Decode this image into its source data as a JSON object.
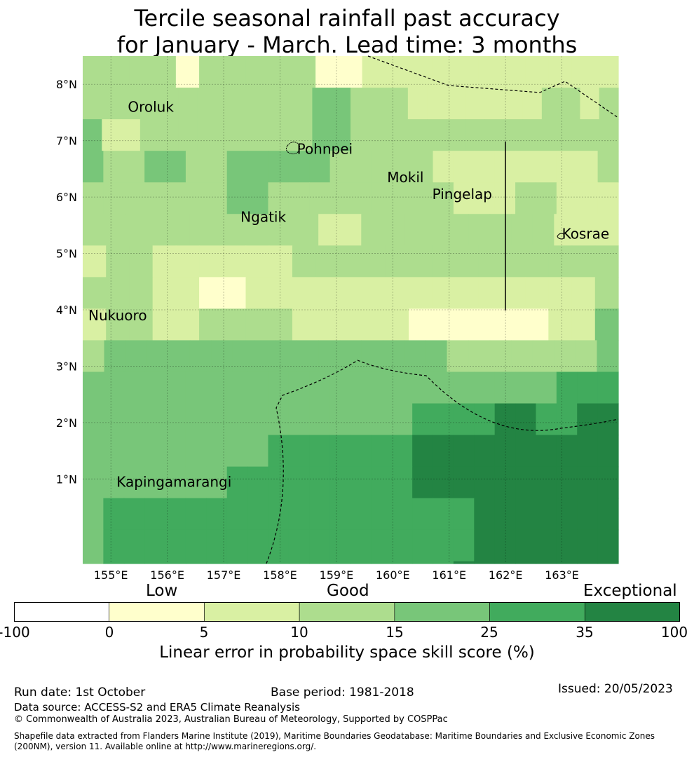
{
  "title": {
    "line1": "Tercile seasonal rainfall past accuracy",
    "line2": "for January - March. Lead time: 3 months"
  },
  "map_data": {
    "lon_range": [
      154.5,
      164.0
    ],
    "lat_range": [
      -0.5,
      8.5
    ],
    "grid_origin": [
      154.5,
      8.5
    ],
    "cell_degrees": [
      0.83,
      0.56
    ],
    "grid_levels": [
      [
        3,
        3,
        3,
        3,
        1,
        3,
        3,
        3,
        3,
        3,
        1,
        1,
        2,
        2,
        2,
        2,
        2,
        2,
        2,
        2,
        2,
        2,
        2
      ],
      [
        3,
        3,
        3,
        3,
        3,
        3,
        3,
        3,
        3,
        3,
        3,
        3,
        4,
        4,
        3,
        3,
        3,
        2,
        2,
        2,
        2,
        2,
        2,
        2,
        3,
        3,
        2,
        3
      ],
      [
        4,
        2,
        2,
        3,
        3,
        3,
        3,
        3,
        3,
        3,
        3,
        3,
        4,
        4,
        3,
        3,
        3,
        3,
        3,
        3,
        3,
        3,
        3,
        3,
        3,
        3,
        3,
        3
      ],
      [
        4,
        3,
        3,
        4,
        4,
        3,
        3,
        4,
        4,
        4,
        4,
        4,
        3,
        3,
        3,
        3,
        3,
        2,
        2,
        2,
        2,
        2,
        2,
        2,
        2,
        3
      ],
      [
        3,
        3,
        3,
        3,
        3,
        3,
        3,
        4,
        4,
        3,
        3,
        3,
        3,
        3,
        3,
        3,
        3,
        3,
        2,
        2,
        2,
        3,
        3,
        2,
        2,
        2
      ],
      [
        3,
        3,
        3,
        3,
        3,
        3,
        3,
        3,
        3,
        3,
        3,
        2,
        2,
        3,
        3,
        3,
        3,
        3,
        3,
        3,
        3,
        3,
        2,
        2,
        2
      ],
      [
        2,
        3,
        3,
        2,
        2,
        2,
        2,
        2,
        2,
        3,
        3,
        3,
        3,
        3,
        3,
        3,
        3,
        3,
        3,
        3,
        3,
        3,
        3
      ],
      [
        3,
        3,
        3,
        2,
        2,
        1,
        1,
        2,
        2,
        2,
        2,
        2,
        2,
        2,
        2,
        2,
        2,
        2,
        2,
        2,
        2,
        2,
        3
      ],
      [
        2,
        3,
        3,
        2,
        2,
        3,
        3,
        3,
        3,
        2,
        2,
        2,
        2,
        2,
        1,
        1,
        1,
        1,
        1,
        1,
        2,
        2,
        4
      ],
      [
        3,
        4,
        4,
        4,
        4,
        4,
        4,
        4,
        4,
        4,
        4,
        4,
        4,
        4,
        4,
        4,
        4,
        3,
        3,
        3,
        3,
        3,
        3,
        3,
        4
      ],
      [
        4,
        4,
        4,
        4,
        4,
        4,
        4,
        4,
        4,
        4,
        4,
        4,
        4,
        4,
        4,
        4,
        4,
        4,
        4,
        4,
        4,
        4,
        4,
        5,
        5,
        5
      ],
      [
        4,
        4,
        4,
        4,
        4,
        4,
        4,
        4,
        4,
        4,
        4,
        4,
        4,
        4,
        4,
        4,
        5,
        5,
        5,
        5,
        6,
        6,
        5,
        5,
        6,
        6
      ],
      [
        4,
        4,
        4,
        4,
        4,
        4,
        4,
        4,
        4,
        5,
        5,
        5,
        5,
        5,
        5,
        5,
        6,
        6,
        6,
        6,
        6,
        6,
        6,
        6,
        6,
        6
      ],
      [
        4,
        4,
        4,
        4,
        4,
        4,
        4,
        5,
        5,
        5,
        5,
        5,
        5,
        5,
        5,
        5,
        6,
        6,
        6,
        6,
        6,
        6,
        6,
        6,
        6,
        6
      ],
      [
        4,
        5,
        5,
        5,
        5,
        5,
        5,
        5,
        5,
        5,
        5,
        5,
        5,
        5,
        5,
        5,
        5,
        5,
        5,
        6,
        6,
        6,
        6,
        6,
        6,
        6
      ],
      [
        4,
        5,
        5,
        5,
        5,
        5,
        5,
        5,
        5,
        5,
        5,
        5,
        5,
        5,
        5,
        5,
        5,
        5,
        5,
        6,
        6,
        6,
        6,
        6,
        6,
        6
      ],
      [
        4,
        5,
        5,
        5,
        5,
        5,
        5,
        5,
        5,
        5,
        5,
        5,
        5,
        5,
        5,
        5,
        5,
        5,
        6,
        6,
        6,
        6,
        6,
        6,
        6,
        6
      ]
    ],
    "x_ticks": [
      "155°E",
      "156°E",
      "157°E",
      "158°E",
      "159°E",
      "160°E",
      "161°E",
      "162°E",
      "163°E"
    ],
    "x_tick_values": [
      155,
      156,
      157,
      158,
      159,
      160,
      161,
      162,
      163
    ],
    "y_ticks": [
      "8°N",
      "7°N",
      "6°N",
      "5°N",
      "4°N",
      "3°N",
      "2°N",
      "1°N"
    ],
    "y_tick_values": [
      8,
      7,
      6,
      5,
      4,
      3,
      2,
      1
    ],
    "places": [
      {
        "name": "Oroluk",
        "lon": 155.3,
        "lat": 7.6
      },
      {
        "name": "Pohnpei",
        "lon": 158.3,
        "lat": 6.85
      },
      {
        "name": "Mokil",
        "lon": 159.9,
        "lat": 6.35
      },
      {
        "name": "Pingelap",
        "lon": 160.7,
        "lat": 6.05
      },
      {
        "name": "Ngatik",
        "lon": 157.3,
        "lat": 5.65
      },
      {
        "name": "Kosrae",
        "lon": 163.0,
        "lat": 5.35
      },
      {
        "name": "Nukuoro",
        "lon": 154.6,
        "lat": 3.9
      },
      {
        "name": "Kapingamarangi",
        "lon": 155.1,
        "lat": 0.95
      }
    ]
  },
  "legend": {
    "categories": [
      "Low",
      "Good",
      "Exceptional"
    ],
    "bounds": [
      "-100",
      "0",
      "5",
      "10",
      "15",
      "25",
      "35",
      "100"
    ],
    "colors": [
      "#ffffff",
      "#ffffcc",
      "#d9f0a3",
      "#addd8e",
      "#78c679",
      "#41ab5d",
      "#238443"
    ],
    "axis_title": "Linear error in probability space skill score (%)"
  },
  "footer": {
    "run_date": "Run date: 1st October",
    "base_period": "Base period: 1981-2018",
    "issued": "Issued: 20/05/2023",
    "data_source": "Data source: ACCESS-S2 and ERA5 Climate Reanalysis",
    "copyright": "© Commonwealth of Australia 2023, Australian Bureau of Meteorology, Supported by COSPPac",
    "shapefile": "Shapefile data extracted from Flanders Marine Institute (2019), Maritime Boundaries Geodatabase: Maritime Boundaries and Exclusive Economic Zones (200NM), version 11. Available online at http://www.marineregions.org/."
  }
}
